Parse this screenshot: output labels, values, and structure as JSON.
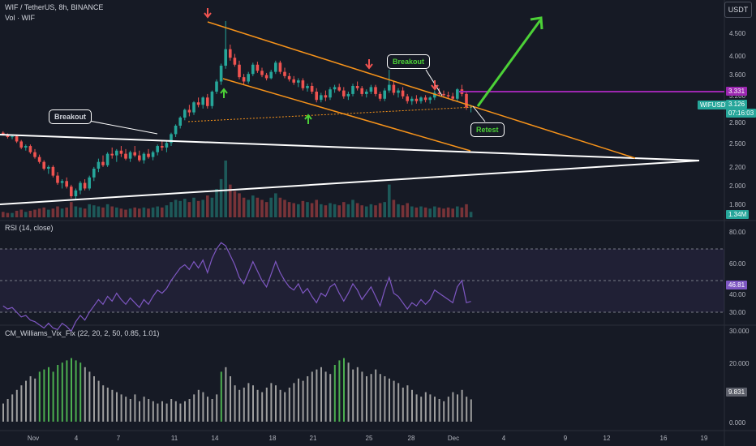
{
  "header": {
    "title": "WIF / TetherUS, 8h, BINANCE",
    "volume_label": "Vol · WIF",
    "currency_button": "USDT"
  },
  "price_axis": {
    "ticks": [
      "4.500",
      "4.000",
      "3.600",
      "3.200",
      "2.800",
      "2.500",
      "2.200",
      "2.000",
      "1.800"
    ],
    "price_tag": "3.331",
    "symbol_tag": "WIFUSDT",
    "last_price": "3.126",
    "countdown": "07:16:03",
    "volume_tag": "1.34M"
  },
  "rsi_panel": {
    "title": "RSI (14, close)",
    "ticks": [
      "80.00",
      "60.00",
      "40.00",
      "30.00"
    ],
    "value_tag": "46.81"
  },
  "vix_panel": {
    "title": "CM_Williams_Vix_Fix (22, 20, 2, 50, 0.85, 1.01)",
    "ticks": [
      "30.000",
      "20.000",
      "0.000"
    ],
    "value_tag": "9.831"
  },
  "time_axis": {
    "ticks": [
      "Nov",
      "4",
      "7",
      "11",
      "14",
      "18",
      "21",
      "25",
      "28",
      "Dec",
      "4",
      "9",
      "12",
      "16",
      "19"
    ]
  },
  "annotations": {
    "breakout_left": "Breakout",
    "breakout_right": "Breakout",
    "retest": "Retest"
  },
  "colors": {
    "background": "#161a25",
    "up": "#26a69a",
    "down": "#ef5350",
    "channel": "#f7931a",
    "resistance": "#9c27b0",
    "projection": "#4cd137",
    "rsi_line": "#7e57c2",
    "vix_normal": "#9e9e9e",
    "vix_signal": "#4caf50"
  },
  "chart_data": {
    "type": "candlestick",
    "price_candles": [
      [
        2.74,
        2.76,
        2.7,
        2.72
      ],
      [
        2.72,
        2.73,
        2.66,
        2.68
      ],
      [
        2.68,
        2.7,
        2.65,
        2.69
      ],
      [
        2.69,
        2.71,
        2.6,
        2.62
      ],
      [
        2.62,
        2.64,
        2.52,
        2.54
      ],
      [
        2.54,
        2.58,
        2.5,
        2.56
      ],
      [
        2.56,
        2.58,
        2.46,
        2.48
      ],
      [
        2.48,
        2.52,
        2.4,
        2.42
      ],
      [
        2.42,
        2.45,
        2.34,
        2.36
      ],
      [
        2.36,
        2.38,
        2.26,
        2.28
      ],
      [
        2.28,
        2.32,
        2.22,
        2.3
      ],
      [
        2.3,
        2.32,
        2.18,
        2.2
      ],
      [
        2.2,
        2.24,
        2.1,
        2.12
      ],
      [
        2.12,
        2.16,
        2.06,
        2.14
      ],
      [
        2.14,
        2.18,
        2.06,
        2.08
      ],
      [
        2.08,
        2.1,
        1.96,
        1.98
      ],
      [
        1.98,
        2.06,
        1.94,
        2.04
      ],
      [
        2.04,
        2.14,
        2.0,
        2.12
      ],
      [
        2.12,
        2.16,
        2.04,
        2.06
      ],
      [
        2.06,
        2.2,
        2.04,
        2.18
      ],
      [
        2.18,
        2.3,
        2.14,
        2.28
      ],
      [
        2.28,
        2.4,
        2.24,
        2.36
      ],
      [
        2.36,
        2.44,
        2.3,
        2.32
      ],
      [
        2.32,
        2.48,
        2.3,
        2.46
      ],
      [
        2.46,
        2.54,
        2.4,
        2.44
      ],
      [
        2.44,
        2.52,
        2.36,
        2.5
      ],
      [
        2.5,
        2.56,
        2.42,
        2.46
      ],
      [
        2.46,
        2.52,
        2.38,
        2.4
      ],
      [
        2.4,
        2.5,
        2.36,
        2.48
      ],
      [
        2.48,
        2.56,
        2.42,
        2.44
      ],
      [
        2.44,
        2.5,
        2.36,
        2.38
      ],
      [
        2.38,
        2.48,
        2.34,
        2.46
      ],
      [
        2.46,
        2.52,
        2.4,
        2.42
      ],
      [
        2.42,
        2.5,
        2.38,
        2.48
      ],
      [
        2.48,
        2.58,
        2.44,
        2.56
      ],
      [
        2.56,
        2.64,
        2.5,
        2.54
      ],
      [
        2.54,
        2.62,
        2.48,
        2.6
      ],
      [
        2.6,
        2.74,
        2.56,
        2.72
      ],
      [
        2.72,
        2.86,
        2.68,
        2.84
      ],
      [
        2.84,
        2.98,
        2.8,
        2.96
      ],
      [
        2.96,
        3.1,
        2.92,
        3.08
      ],
      [
        3.08,
        3.16,
        2.98,
        3.04
      ],
      [
        3.04,
        3.22,
        3.0,
        3.2
      ],
      [
        3.2,
        3.28,
        3.12,
        3.16
      ],
      [
        3.16,
        3.3,
        3.1,
        3.28
      ],
      [
        3.28,
        3.34,
        3.1,
        3.14
      ],
      [
        3.14,
        3.4,
        3.1,
        3.38
      ],
      [
        3.38,
        3.6,
        3.34,
        3.56
      ],
      [
        3.56,
        3.9,
        3.5,
        3.86
      ],
      [
        3.86,
        4.85,
        3.8,
        4.2
      ],
      [
        4.2,
        4.3,
        3.96,
        4.02
      ],
      [
        4.02,
        4.1,
        3.84,
        3.88
      ],
      [
        3.88,
        3.96,
        3.6,
        3.64
      ],
      [
        3.64,
        3.7,
        3.5,
        3.56
      ],
      [
        3.56,
        3.74,
        3.52,
        3.7
      ],
      [
        3.7,
        3.92,
        3.66,
        3.88
      ],
      [
        3.88,
        3.94,
        3.72,
        3.76
      ],
      [
        3.76,
        3.82,
        3.64,
        3.68
      ],
      [
        3.68,
        3.72,
        3.58,
        3.62
      ],
      [
        3.62,
        3.78,
        3.6,
        3.74
      ],
      [
        3.74,
        3.96,
        3.7,
        3.92
      ],
      [
        3.92,
        3.96,
        3.7,
        3.74
      ],
      [
        3.74,
        3.82,
        3.62,
        3.66
      ],
      [
        3.66,
        3.72,
        3.56,
        3.6
      ],
      [
        3.6,
        3.66,
        3.5,
        3.54
      ],
      [
        3.54,
        3.62,
        3.46,
        3.58
      ],
      [
        3.58,
        3.62,
        3.4,
        3.44
      ],
      [
        3.44,
        3.52,
        3.38,
        3.48
      ],
      [
        3.48,
        3.54,
        3.34,
        3.38
      ],
      [
        3.38,
        3.44,
        3.2,
        3.24
      ],
      [
        3.24,
        3.36,
        3.2,
        3.32
      ],
      [
        3.32,
        3.4,
        3.22,
        3.28
      ],
      [
        3.28,
        3.46,
        3.24,
        3.42
      ],
      [
        3.42,
        3.5,
        3.36,
        3.46
      ],
      [
        3.46,
        3.52,
        3.38,
        3.4
      ],
      [
        3.4,
        3.46,
        3.26,
        3.3
      ],
      [
        3.3,
        3.38,
        3.24,
        3.34
      ],
      [
        3.34,
        3.52,
        3.3,
        3.48
      ],
      [
        3.48,
        3.56,
        3.4,
        3.44
      ],
      [
        3.44,
        3.48,
        3.3,
        3.34
      ],
      [
        3.34,
        3.42,
        3.28,
        3.38
      ],
      [
        3.38,
        3.5,
        3.34,
        3.46
      ],
      [
        3.46,
        3.5,
        3.3,
        3.34
      ],
      [
        3.34,
        3.38,
        3.22,
        3.26
      ],
      [
        3.26,
        3.44,
        3.22,
        3.4
      ],
      [
        3.4,
        3.78,
        3.36,
        3.5
      ],
      [
        3.5,
        3.56,
        3.32,
        3.36
      ],
      [
        3.36,
        3.44,
        3.28,
        3.4
      ],
      [
        3.4,
        3.46,
        3.26,
        3.3
      ],
      [
        3.3,
        3.34,
        3.18,
        3.22
      ],
      [
        3.22,
        3.3,
        3.16,
        3.26
      ],
      [
        3.26,
        3.32,
        3.18,
        3.22
      ],
      [
        3.22,
        3.3,
        3.18,
        3.28
      ],
      [
        3.28,
        3.32,
        3.2,
        3.24
      ],
      [
        3.24,
        3.3,
        3.18,
        3.28
      ],
      [
        3.28,
        3.4,
        3.24,
        3.36
      ],
      [
        3.36,
        3.44,
        3.3,
        3.34
      ],
      [
        3.34,
        3.4,
        3.28,
        3.32
      ],
      [
        3.32,
        3.38,
        3.26,
        3.3
      ],
      [
        3.3,
        3.36,
        3.22,
        3.26
      ],
      [
        3.26,
        3.44,
        3.22,
        3.42
      ],
      [
        3.42,
        3.5,
        3.3,
        3.34
      ],
      [
        3.34,
        3.38,
        3.08,
        3.12
      ],
      [
        3.12,
        3.16,
        3.04,
        3.13
      ]
    ],
    "volume": [
      5,
      4,
      4,
      6,
      7,
      5,
      6,
      7,
      8,
      9,
      7,
      8,
      10,
      8,
      9,
      14,
      10,
      9,
      8,
      12,
      11,
      10,
      9,
      12,
      10,
      9,
      8,
      7,
      8,
      9,
      8,
      9,
      8,
      9,
      10,
      9,
      11,
      14,
      16,
      15,
      17,
      14,
      18,
      15,
      16,
      20,
      18,
      26,
      35,
      52,
      30,
      24,
      22,
      18,
      16,
      20,
      18,
      16,
      14,
      18,
      22,
      18,
      16,
      14,
      13,
      12,
      15,
      14,
      13,
      16,
      12,
      11,
      13,
      12,
      11,
      14,
      12,
      16,
      13,
      11,
      10,
      12,
      11,
      13,
      14,
      30,
      16,
      12,
      11,
      13,
      10,
      9,
      10,
      9,
      8,
      10,
      9,
      8,
      9,
      8,
      10,
      9,
      12,
      5
    ],
    "rsi": [
      44,
      42,
      43,
      40,
      37,
      38,
      35,
      34,
      32,
      30,
      33,
      30,
      29,
      33,
      31,
      28,
      34,
      38,
      35,
      40,
      44,
      48,
      45,
      50,
      47,
      52,
      48,
      45,
      49,
      46,
      43,
      48,
      45,
      50,
      54,
      52,
      55,
      60,
      64,
      68,
      70,
      67,
      72,
      68,
      73,
      65,
      74,
      80,
      84,
      82,
      76,
      70,
      62,
      58,
      65,
      72,
      66,
      60,
      56,
      64,
      72,
      65,
      60,
      56,
      54,
      58,
      52,
      55,
      50,
      46,
      52,
      50,
      56,
      58,
      52,
      47,
      52,
      58,
      54,
      48,
      52,
      56,
      50,
      44,
      54,
      62,
      52,
      50,
      46,
      42,
      46,
      44,
      48,
      45,
      48,
      54,
      52,
      50,
      48,
      46,
      56,
      60,
      46,
      46.81
    ],
    "vix_fix": [
      8,
      10,
      12,
      14,
      16,
      18,
      20,
      19,
      22,
      23,
      24,
      22,
      25,
      26,
      27,
      28,
      27,
      26,
      24,
      22,
      20,
      18,
      16,
      15,
      14,
      13,
      12,
      11,
      10,
      12,
      9,
      11,
      10,
      9,
      8,
      9,
      8,
      10,
      9,
      8,
      9,
      10,
      12,
      14,
      13,
      11,
      10,
      12,
      22,
      24,
      20,
      16,
      14,
      15,
      17,
      16,
      14,
      13,
      15,
      17,
      16,
      14,
      13,
      15,
      17,
      19,
      18,
      20,
      22,
      23,
      24,
      22,
      21,
      25,
      27,
      28,
      26,
      23,
      24,
      22,
      20,
      21,
      23,
      21,
      20,
      19,
      18,
      17,
      15,
      16,
      14,
      12,
      11,
      13,
      12,
      11,
      10,
      9,
      11,
      13,
      12,
      14,
      11,
      9.831
    ],
    "vix_signal_bars": [
      8,
      9,
      10,
      11,
      12,
      13,
      14,
      15,
      16,
      17,
      48,
      73,
      74,
      75
    ],
    "price_ylim": [
      1.8,
      4.9
    ],
    "rsi_ylim": [
      25,
      90
    ],
    "vix_ylim": [
      0,
      30
    ]
  }
}
